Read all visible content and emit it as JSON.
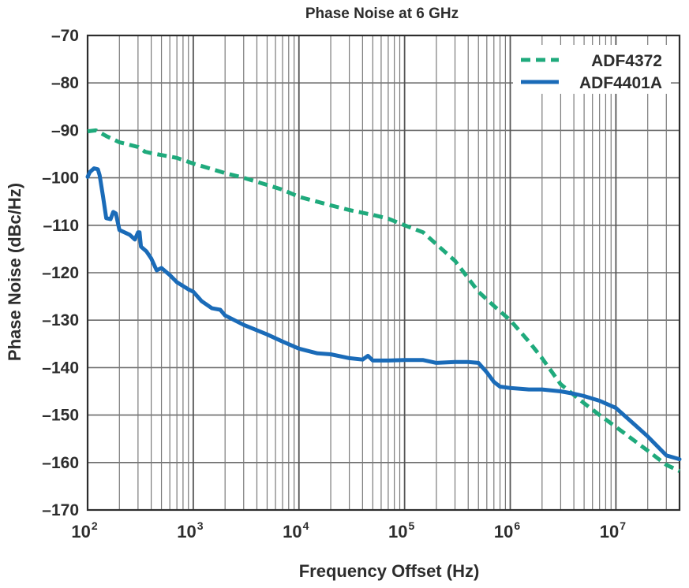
{
  "chart_data": {
    "type": "line",
    "title": "Phase Noise at 6 GHz",
    "xlabel": "Frequency Offset (Hz)",
    "ylabel": "Phase Noise (dBc/Hz)",
    "xscale": "log",
    "xlim": [
      100,
      40000000
    ],
    "ylim": [
      -170,
      -70
    ],
    "yticks": [
      -70,
      -80,
      -90,
      -100,
      -110,
      -120,
      -130,
      -140,
      -150,
      -160,
      -170
    ],
    "ytick_labels": [
      "–70",
      "–80",
      "–90",
      "–100",
      "–110",
      "–120",
      "–130",
      "–140",
      "–150",
      "–160",
      "–170"
    ],
    "xticks": [
      {
        "value": 100,
        "base": "10",
        "exp": "2"
      },
      {
        "value": 1000,
        "base": "10",
        "exp": "3"
      },
      {
        "value": 10000,
        "base": "10",
        "exp": "4"
      },
      {
        "value": 100000,
        "base": "10",
        "exp": "5"
      },
      {
        "value": 1000000,
        "base": "10",
        "exp": "6"
      },
      {
        "value": 10000000,
        "base": "10",
        "exp": "7"
      }
    ],
    "grid": true,
    "legend_position": "top-right",
    "series": [
      {
        "name": "ADF4372",
        "color": "#1faa7c",
        "style": "dashed",
        "points": [
          [
            100,
            -90.2
          ],
          [
            120,
            -90
          ],
          [
            150,
            -91.2
          ],
          [
            200,
            -92.5
          ],
          [
            300,
            -93.5
          ],
          [
            350,
            -94.5
          ],
          [
            400,
            -94.8
          ],
          [
            500,
            -95.2
          ],
          [
            700,
            -95.8
          ],
          [
            1000,
            -97
          ],
          [
            2000,
            -99
          ],
          [
            3000,
            -100
          ],
          [
            5000,
            -101.5
          ],
          [
            7000,
            -102.5
          ],
          [
            10000,
            -104
          ],
          [
            20000,
            -105.8
          ],
          [
            30000,
            -106.8
          ],
          [
            50000,
            -107.8
          ],
          [
            70000,
            -108.6
          ],
          [
            100000,
            -110
          ],
          [
            150000,
            -111.5
          ],
          [
            200000,
            -114
          ],
          [
            300000,
            -117.5
          ],
          [
            500000,
            -124
          ],
          [
            700000,
            -127
          ],
          [
            1000000,
            -130
          ],
          [
            1500000,
            -134.5
          ],
          [
            2000000,
            -138
          ],
          [
            3000000,
            -143.5
          ],
          [
            5000000,
            -147.5
          ],
          [
            7000000,
            -150
          ],
          [
            10000000,
            -152.5
          ],
          [
            20000000,
            -157.5
          ],
          [
            30000000,
            -160.5
          ],
          [
            40000000,
            -161.8
          ]
        ]
      },
      {
        "name": "ADF4401A",
        "color": "#1a6bb8",
        "style": "solid",
        "points": [
          [
            100,
            -99.8
          ],
          [
            105,
            -98.8
          ],
          [
            115,
            -98
          ],
          [
            125,
            -98.2
          ],
          [
            130,
            -99.5
          ],
          [
            140,
            -104
          ],
          [
            150,
            -108.5
          ],
          [
            165,
            -108.7
          ],
          [
            175,
            -107.2
          ],
          [
            185,
            -107.5
          ],
          [
            200,
            -111
          ],
          [
            250,
            -112
          ],
          [
            280,
            -113
          ],
          [
            300,
            -111.5
          ],
          [
            310,
            -111.5
          ],
          [
            320,
            -114.5
          ],
          [
            360,
            -115.5
          ],
          [
            400,
            -117
          ],
          [
            450,
            -119.5
          ],
          [
            500,
            -119
          ],
          [
            600,
            -120.5
          ],
          [
            700,
            -122
          ],
          [
            900,
            -123.5
          ],
          [
            1000,
            -124
          ],
          [
            1200,
            -126
          ],
          [
            1500,
            -127.5
          ],
          [
            1800,
            -127.8
          ],
          [
            2000,
            -129
          ],
          [
            3000,
            -131
          ],
          [
            5000,
            -133
          ],
          [
            7000,
            -134.5
          ],
          [
            10000,
            -136
          ],
          [
            15000,
            -137
          ],
          [
            20000,
            -137.2
          ],
          [
            30000,
            -138
          ],
          [
            40000,
            -138.3
          ],
          [
            45000,
            -137.5
          ],
          [
            50000,
            -138.5
          ],
          [
            70000,
            -138.5
          ],
          [
            100000,
            -138.4
          ],
          [
            150000,
            -138.4
          ],
          [
            200000,
            -139
          ],
          [
            300000,
            -138.8
          ],
          [
            400000,
            -138.8
          ],
          [
            500000,
            -139
          ],
          [
            600000,
            -141
          ],
          [
            700000,
            -143
          ],
          [
            800000,
            -144
          ],
          [
            1000000,
            -144.3
          ],
          [
            1500000,
            -144.6
          ],
          [
            2000000,
            -144.6
          ],
          [
            3000000,
            -145
          ],
          [
            4000000,
            -145.5
          ],
          [
            5000000,
            -146
          ],
          [
            7000000,
            -147
          ],
          [
            10000000,
            -148.5
          ],
          [
            15000000,
            -152
          ],
          [
            20000000,
            -154.5
          ],
          [
            30000000,
            -158.5
          ],
          [
            40000000,
            -159.3
          ]
        ]
      }
    ]
  }
}
